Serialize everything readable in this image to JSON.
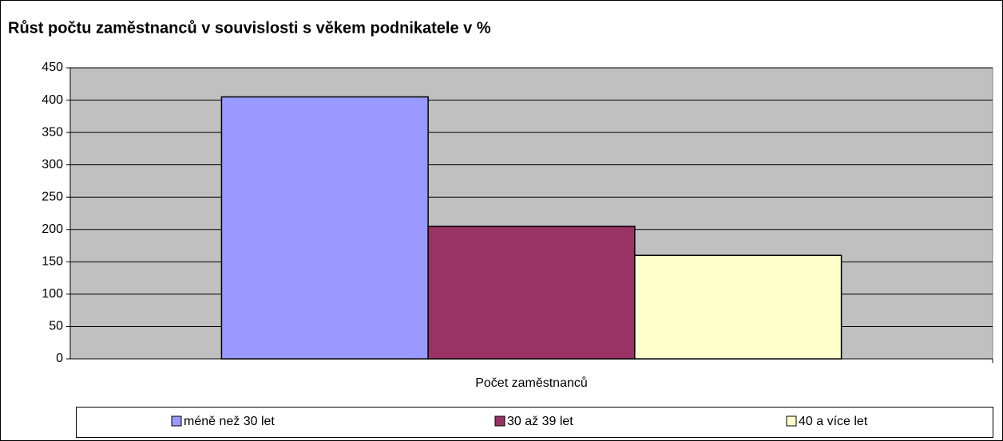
{
  "chart_data": {
    "type": "bar",
    "title": "Růst počtu zaměstnanců v souvislosti s věkem podnikatele v %",
    "categories": [
      "Počet zaměstnanců"
    ],
    "series": [
      {
        "name": "méně než 30 let",
        "color": "#9999ff",
        "values": [
          405
        ]
      },
      {
        "name": "30 až 39 let",
        "color": "#993366",
        "values": [
          205
        ]
      },
      {
        "name": "40 a více let",
        "color": "#ffffcc",
        "values": [
          160
        ]
      }
    ],
    "ylim": [
      0,
      450
    ],
    "yticks": [
      0,
      50,
      100,
      150,
      200,
      250,
      300,
      350,
      400,
      450
    ],
    "grid": true,
    "legend": "bottom"
  }
}
